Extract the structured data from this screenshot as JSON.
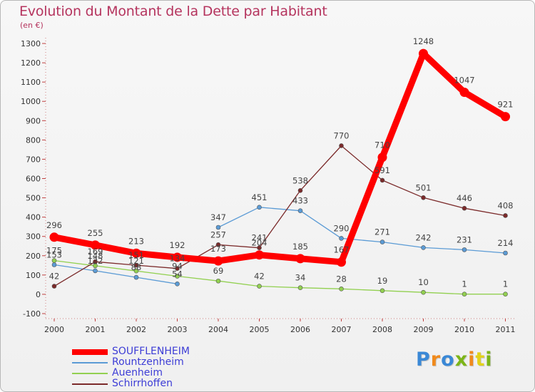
{
  "title": "Evolution du Montant de la Dette par Habitant",
  "subtitle": "(en €)",
  "logo_text": "Proxiti",
  "chart_data": {
    "type": "line",
    "title": "Evolution du Montant de la Dette par Habitant",
    "ylabel": "(en €)",
    "xlabel": "",
    "categories": [
      "2000",
      "2001",
      "2002",
      "2003",
      "2004",
      "2005",
      "2006",
      "2007",
      "2008",
      "2009",
      "2010",
      "2011"
    ],
    "ylim": [
      -100,
      1300
    ],
    "yticks": [
      "-100",
      "0",
      "100",
      "200",
      "300",
      "400",
      "500",
      "600",
      "700",
      "800",
      "900",
      "1000",
      "1100",
      "1200",
      "1300"
    ],
    "grid": false,
    "legend_position": "bottom-left",
    "series": [
      {
        "name": "SOUFFLENHEIM",
        "color": "#ff0000",
        "values": [
          296,
          255,
          213,
          192,
          173,
          204,
          185,
          167,
          710,
          1248,
          1047,
          921
        ],
        "labels": [
          "296",
          "255",
          "213",
          "192",
          "173",
          "204",
          "185",
          "167",
          "710",
          "1248",
          "1047",
          "921"
        ]
      },
      {
        "name": "Rountzenheim",
        "color": "#5b9bd5",
        "values": [
          153,
          122,
          88,
          54,
          347,
          451,
          433,
          290,
          271,
          242,
          231,
          214
        ],
        "labels": [
          "153",
          "122",
          "88",
          "54",
          "347",
          "451",
          "433",
          "290",
          "271",
          "242",
          "231",
          "214"
        ]
      },
      {
        "name": "Auenheim",
        "color": "#92d050",
        "values": [
          175,
          148,
          121,
          94,
          69,
          42,
          34,
          28,
          19,
          10,
          1,
          1
        ],
        "labels": [
          "175",
          "148",
          "121",
          "94",
          "69",
          "42",
          "34",
          "28",
          "19",
          "10",
          "1",
          "1"
        ]
      },
      {
        "name": "Schirrhoffen",
        "color": "#7b2a2a",
        "values": [
          42,
          169,
          151,
          134,
          257,
          241,
          538,
          770,
          591,
          501,
          446,
          408
        ],
        "labels": [
          "42",
          "169",
          "151",
          "134",
          "257",
          "241",
          "538",
          "770",
          "591",
          "501",
          "446",
          "408"
        ]
      }
    ]
  }
}
